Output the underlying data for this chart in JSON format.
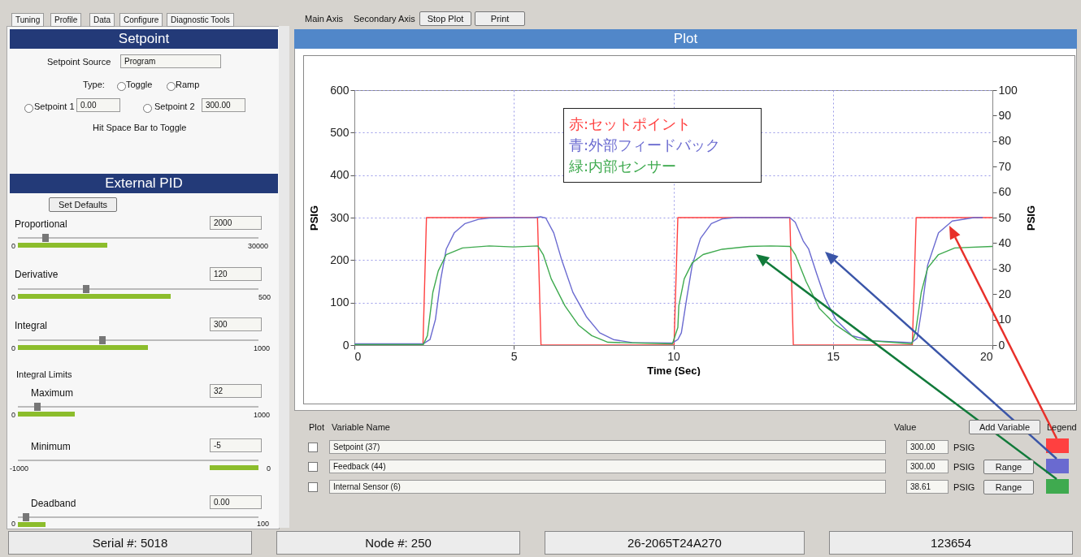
{
  "chart_data": [
    {
      "type": "line",
      "title": "Plot",
      "xlabel": "Time (Sec)",
      "ylabel": "PSIG",
      "y2label": "PSIG",
      "xlim": [
        0,
        20
      ],
      "xticks": [
        0,
        5,
        10,
        15,
        20
      ],
      "ylim": [
        0,
        600
      ],
      "yticks": [
        0,
        100,
        200,
        300,
        400,
        500,
        600
      ],
      "y2lim": [
        0,
        100
      ],
      "y2ticks": [
        0,
        10,
        20,
        30,
        40,
        50,
        60,
        70,
        80,
        90,
        100
      ],
      "grid": true,
      "legend": "top",
      "line_style": "solid",
      "series": [
        {
          "name": "赤:セットポイント",
          "color": "#ff4040",
          "x": [
            0,
            2.15,
            2.26,
            5.74,
            5.85,
            10.02,
            10.14,
            13.65,
            13.76,
            17.49,
            17.61,
            20
          ],
          "values": [
            0,
            0,
            300,
            300,
            0,
            0,
            300,
            300,
            0,
            0,
            300,
            300
          ]
        },
        {
          "name": "青:外部フィードバック",
          "color": "#6a6ad0",
          "x": [
            0,
            2.16,
            2.37,
            2.54,
            2.71,
            2.88,
            3.13,
            3.47,
            3.89,
            4.23,
            5.65,
            5.84,
            6.0,
            6.25,
            6.5,
            6.85,
            7.27,
            7.69,
            8.12,
            8.7,
            9.97,
            10.14,
            10.25,
            10.42,
            10.59,
            10.85,
            11.19,
            11.53,
            11.95,
            13.65,
            13.82,
            14.07,
            14.24,
            14.49,
            14.75,
            15.09,
            15.6,
            16.2,
            17.47,
            17.64,
            17.8,
            17.97,
            18.31,
            18.74,
            19.42,
            19.7
          ],
          "values": [
            3,
            3,
            13,
            60,
            156,
            226,
            264,
            286,
            296,
            299,
            300,
            302,
            299,
            264,
            200,
            124,
            67,
            29,
            13,
            6,
            5,
            13,
            29,
            111,
            188,
            251,
            286,
            297,
            300,
            300,
            289,
            245,
            226,
            168,
            111,
            60,
            22,
            10,
            6,
            16,
            92,
            188,
            264,
            292,
            300,
            300
          ]
        },
        {
          "name": "緑:内部センサー",
          "color": "#3faa4f",
          "axis": "y2",
          "x": [
            0,
            2.16,
            2.29,
            2.46,
            2.63,
            2.88,
            3.39,
            4.23,
            4.99,
            5.75,
            5.92,
            6.17,
            6.6,
            7.02,
            7.44,
            7.95,
            9.97,
            10.14,
            10.17,
            10.34,
            10.59,
            10.93,
            11.53,
            12.38,
            13.05,
            13.65,
            13.82,
            14.16,
            14.58,
            15.09,
            15.77,
            17.47,
            17.6,
            17.77,
            17.97,
            18.31,
            18.82,
            20
          ],
          "values": [
            0.2,
            0.2,
            3.7,
            20.7,
            29.1,
            35.5,
            38.1,
            38.9,
            38.5,
            38.9,
            35.5,
            26,
            15.4,
            7.9,
            3.7,
            1.1,
            0.5,
            6.9,
            15.4,
            26,
            32.3,
            35.5,
            37.6,
            38.7,
            38.9,
            38.7,
            35.5,
            24.9,
            14.3,
            7.9,
            2.1,
            0.5,
            5.8,
            20.7,
            30.2,
            35.5,
            38.1,
            38.7
          ]
        }
      ]
    },
    {
      "type": "other",
      "annotations": [
        "Tuning",
        "Profile",
        "Data",
        "Configure",
        "Diagnostic Tools",
        "Main Axis",
        "Secondary Axis",
        "Stop Plot",
        "Print",
        "Setpoint",
        "Setpoint Source",
        "Program",
        "Type:",
        "Toggle",
        "Ramp",
        "Setpoint 1",
        "0.00",
        "Setpoint 2",
        "300.00",
        "Hit Space Bar to Toggle",
        "External PID",
        "Set Defaults",
        "Proportional",
        "2000",
        "0",
        "30000",
        "Derivative",
        "120",
        "0",
        "500",
        "Integral",
        "300",
        "0",
        "1000",
        "Integral Limits",
        "Maximum",
        "32",
        "0",
        "1000",
        "Minimum",
        "-5",
        "-1000",
        "0",
        "Deadband",
        "0.00",
        "0",
        "100",
        "Plot",
        "Variable Name",
        "Value",
        "Add Variable",
        "Legend",
        "Setpoint (37)",
        "300.00",
        "PSIG",
        "Feedback (44)",
        "300.00",
        "PSIG",
        "Range",
        "Internal Sensor (6)",
        "38.61",
        "PSIG",
        "Range",
        "Serial #: 5018",
        "Node #: 250",
        "26-2065T24A270",
        "123654"
      ]
    }
  ]
}
